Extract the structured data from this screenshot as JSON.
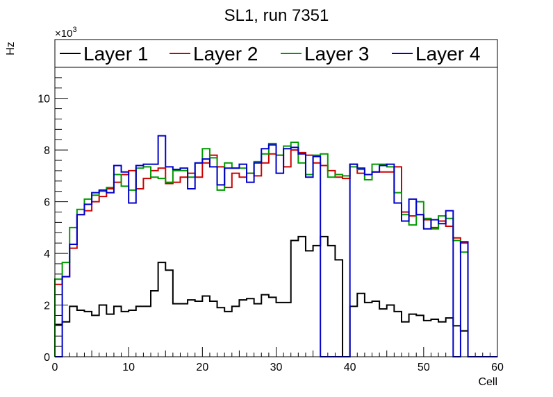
{
  "chart_data": {
    "type": "line",
    "style": "step-histogram",
    "title": "SL1, run 7351",
    "xlabel": "Cell",
    "ylabel": "Hz",
    "y_multiplier_label": "×10",
    "y_multiplier_exponent": "3",
    "xlim": [
      0,
      60
    ],
    "ylim": [
      0,
      11.2
    ],
    "x_ticks": [
      0,
      10,
      20,
      30,
      40,
      50,
      60
    ],
    "x_tick_labels": [
      "0",
      "10",
      "20",
      "30",
      "40",
      "50",
      "60"
    ],
    "y_ticks": [
      0,
      2,
      4,
      6,
      8,
      10
    ],
    "y_tick_labels": [
      "0",
      "2",
      "4",
      "6",
      "8",
      "10"
    ],
    "bin_edges_start": 0,
    "bin_width": 1,
    "legend_position": "top",
    "series": [
      {
        "name": "Layer 1",
        "color": "#000000",
        "values": [
          1.25,
          1.35,
          1.95,
          1.8,
          1.75,
          1.6,
          2.0,
          1.65,
          1.95,
          1.75,
          1.8,
          1.95,
          1.95,
          2.55,
          3.65,
          3.35,
          2.05,
          2.05,
          2.2,
          2.15,
          2.35,
          2.15,
          1.9,
          1.75,
          1.95,
          2.2,
          2.25,
          2.05,
          2.4,
          2.3,
          2.1,
          2.1,
          4.5,
          4.65,
          4.1,
          4.3,
          4.65,
          4.3,
          3.75,
          0.0,
          1.95,
          2.45,
          2.1,
          2.15,
          1.85,
          2.0,
          1.75,
          1.35,
          1.65,
          1.6,
          1.4,
          1.45,
          1.35,
          1.5,
          1.2,
          1.0,
          0.0,
          0.0,
          0.0,
          0.0
        ]
      },
      {
        "name": "Layer 2",
        "color": "#cc0000",
        "values": [
          2.8,
          3.1,
          4.2,
          5.5,
          5.65,
          6.0,
          6.2,
          6.5,
          6.75,
          7.05,
          7.2,
          6.5,
          6.9,
          7.2,
          7.3,
          6.7,
          6.75,
          6.95,
          7.1,
          6.95,
          7.5,
          7.8,
          7.35,
          6.55,
          7.1,
          6.95,
          7.1,
          7.0,
          7.5,
          7.85,
          7.8,
          7.35,
          8.0,
          7.9,
          7.8,
          7.5,
          7.4,
          7.2,
          6.95,
          6.9,
          7.45,
          7.1,
          6.85,
          7.15,
          7.15,
          7.15,
          7.35,
          5.6,
          5.45,
          5.5,
          5.3,
          5.0,
          5.25,
          5.05,
          4.6,
          4.4,
          0.0,
          0.0,
          0.0,
          0.0
        ]
      },
      {
        "name": "Layer 3",
        "color": "#009900",
        "values": [
          3.0,
          3.65,
          5.0,
          5.7,
          6.1,
          6.25,
          6.4,
          6.55,
          7.05,
          6.6,
          6.45,
          7.3,
          7.35,
          6.95,
          6.9,
          6.75,
          7.2,
          7.2,
          6.95,
          7.5,
          8.05,
          7.7,
          6.45,
          7.5,
          7.3,
          7.3,
          7.1,
          7.55,
          7.85,
          8.25,
          7.8,
          8.15,
          8.3,
          7.5,
          7.05,
          7.8,
          7.85,
          6.95,
          7.05,
          7.0,
          7.35,
          7.25,
          6.85,
          7.45,
          7.45,
          7.35,
          6.35,
          5.5,
          5.1,
          6.0,
          5.35,
          4.95,
          5.45,
          5.35,
          4.5,
          4.05,
          0.0,
          0.0,
          0.0,
          0.0
        ]
      },
      {
        "name": "Layer 4",
        "color": "#0000cc",
        "values": [
          0.0,
          3.1,
          4.35,
          5.5,
          5.9,
          6.35,
          6.45,
          6.35,
          7.4,
          7.15,
          5.95,
          7.4,
          7.45,
          7.45,
          8.55,
          7.35,
          7.25,
          7.3,
          6.5,
          7.5,
          7.65,
          7.35,
          6.65,
          7.3,
          7.3,
          7.45,
          6.75,
          7.5,
          8.05,
          8.2,
          7.1,
          8.05,
          8.1,
          7.85,
          6.95,
          7.75,
          0.0,
          0.0,
          0.0,
          0.0,
          7.45,
          7.3,
          7.05,
          7.15,
          7.4,
          7.45,
          5.95,
          5.25,
          6.1,
          5.5,
          4.95,
          5.3,
          5.15,
          5.65,
          0.0,
          4.45,
          0.0,
          0.0,
          0.0,
          0.0
        ]
      }
    ]
  }
}
